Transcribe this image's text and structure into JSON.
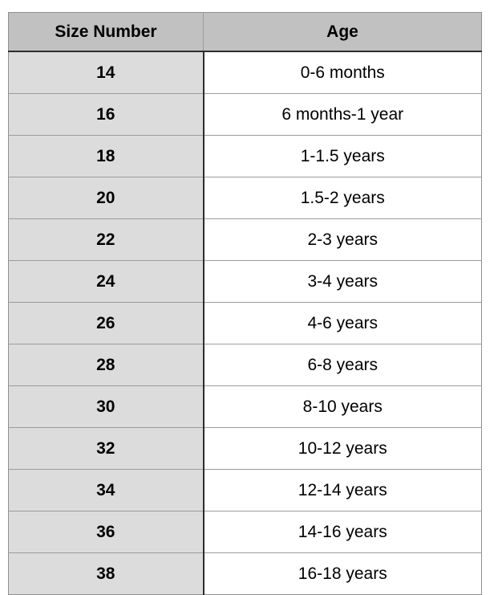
{
  "colors": {
    "header_bg": "#c1c1c1",
    "size_column_bg": "#dcdcdc",
    "age_column_bg": "#ffffff",
    "border_light": "#9b9b9b",
    "border_outer": "#8f8f8f",
    "border_dark": "#2e2e2e",
    "text": "#000000"
  },
  "chart_data": {
    "type": "table",
    "title": "",
    "columns": [
      "Size Number",
      "Age"
    ],
    "rows": [
      [
        "14",
        "0-6 months"
      ],
      [
        "16",
        "6 months-1 year"
      ],
      [
        "18",
        "1-1.5 years"
      ],
      [
        "20",
        "1.5-2 years"
      ],
      [
        "22",
        "2-3 years"
      ],
      [
        "24",
        "3-4 years"
      ],
      [
        "26",
        "4-6 years"
      ],
      [
        "28",
        "6-8 years"
      ],
      [
        "30",
        "8-10 years"
      ],
      [
        "32",
        "10-12 years"
      ],
      [
        "34",
        "12-14 years"
      ],
      [
        "36",
        "14-16 years"
      ],
      [
        "38",
        "16-18 years"
      ]
    ]
  }
}
